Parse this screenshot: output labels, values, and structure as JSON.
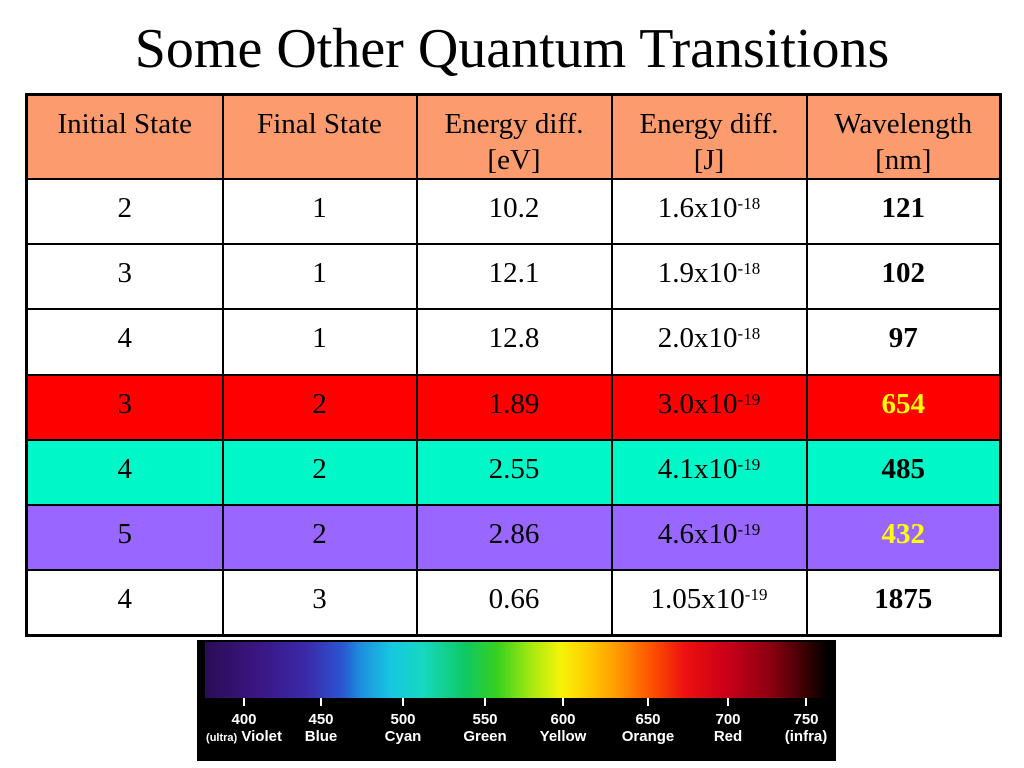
{
  "title": "Some Other Quantum Transitions",
  "table": {
    "headers": [
      [
        "Initial State"
      ],
      [
        "Final State"
      ],
      [
        "Energy diff.",
        "[eV]"
      ],
      [
        "Energy diff.",
        "[J]"
      ],
      [
        "Wavelength",
        "[nm]"
      ]
    ],
    "rows": [
      {
        "initial": "2",
        "final": "1",
        "ev": "10.2",
        "j_mant": "1.6x10",
        "j_exp": "-18",
        "wl": "121",
        "bg": "#ffffff",
        "wl_color": "#000000"
      },
      {
        "initial": "3",
        "final": "1",
        "ev": "12.1",
        "j_mant": "1.9x10",
        "j_exp": "-18",
        "wl": "102",
        "bg": "#ffffff",
        "wl_color": "#000000"
      },
      {
        "initial": "4",
        "final": "1",
        "ev": "12.8",
        "j_mant": "2.0x10",
        "j_exp": "-18",
        "wl": "97",
        "bg": "#ffffff",
        "wl_color": "#000000"
      },
      {
        "initial": "3",
        "final": "2",
        "ev": "1.89",
        "j_mant": "3.0x10",
        "j_exp": "-19",
        "wl": "654",
        "bg": "#ff0000",
        "wl_color": "#ffff00"
      },
      {
        "initial": "4",
        "final": "2",
        "ev": "2.55",
        "j_mant": "4.1x10",
        "j_exp": "-19",
        "wl": "485",
        "bg": "#00f7c8",
        "wl_color": "#000000"
      },
      {
        "initial": "5",
        "final": "2",
        "ev": "2.86",
        "j_mant": "4.6x10",
        "j_exp": "-19",
        "wl": "432",
        "bg": "#9966ff",
        "wl_color": "#ffff00"
      },
      {
        "initial": "4",
        "final": "3",
        "ev": "0.66",
        "j_mant": "1.05x10",
        "j_exp": "-19",
        "wl": "1875",
        "bg": "#ffffff",
        "wl_color": "#000000"
      }
    ]
  },
  "spectrum": {
    "labels": [
      {
        "value": "400",
        "prefix": "(ultra)",
        "name": "Violet"
      },
      {
        "value": "450",
        "prefix": "",
        "name": "Blue"
      },
      {
        "value": "500",
        "prefix": "",
        "name": "Cyan"
      },
      {
        "value": "550",
        "prefix": "",
        "name": "Green"
      },
      {
        "value": "600",
        "prefix": "",
        "name": "Yellow"
      },
      {
        "value": "650",
        "prefix": "",
        "name": "Orange"
      },
      {
        "value": "700",
        "prefix": "",
        "name": "Red"
      },
      {
        "value": "750",
        "prefix": "",
        "name": "(infra)"
      }
    ]
  }
}
